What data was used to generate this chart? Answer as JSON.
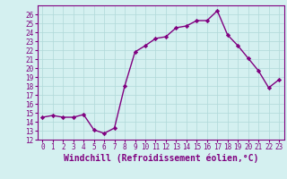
{
  "x": [
    0,
    1,
    2,
    3,
    4,
    5,
    6,
    7,
    8,
    9,
    10,
    11,
    12,
    13,
    14,
    15,
    16,
    17,
    18,
    19,
    20,
    21,
    22,
    23
  ],
  "y": [
    14.5,
    14.7,
    14.5,
    14.5,
    14.8,
    13.1,
    12.7,
    13.3,
    18.0,
    21.8,
    22.5,
    23.3,
    23.5,
    24.5,
    24.7,
    25.3,
    25.3,
    26.4,
    23.7,
    22.5,
    21.1,
    19.7,
    17.8,
    18.7
  ],
  "line_color": "#800080",
  "marker": "D",
  "marker_size": 2.2,
  "line_width": 1.0,
  "background_color": "#d4f0f0",
  "grid_color": "#b0d8d8",
  "xlabel": "Windchill (Refroidissement éolien,°C)",
  "ylabel": "",
  "xlim": [
    -0.5,
    23.5
  ],
  "ylim": [
    12,
    27
  ],
  "yticks": [
    12,
    13,
    14,
    15,
    16,
    17,
    18,
    19,
    20,
    21,
    22,
    23,
    24,
    25,
    26
  ],
  "xticks": [
    0,
    1,
    2,
    3,
    4,
    5,
    6,
    7,
    8,
    9,
    10,
    11,
    12,
    13,
    14,
    15,
    16,
    17,
    18,
    19,
    20,
    21,
    22,
    23
  ],
  "tick_fontsize": 5.5,
  "xlabel_fontsize": 7.0
}
